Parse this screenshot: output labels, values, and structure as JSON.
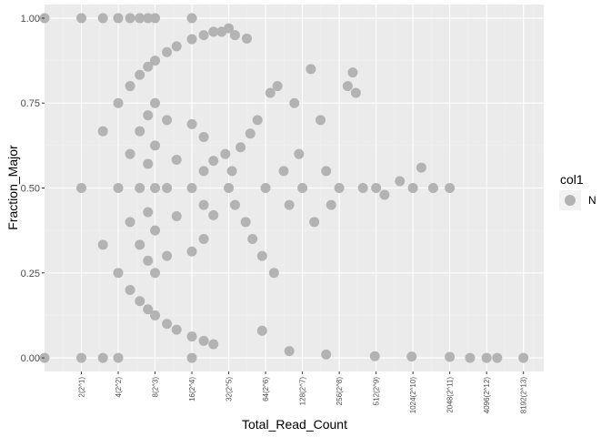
{
  "chart_data": {
    "type": "scatter",
    "xlabel": "Total_Read_Count",
    "ylabel": "Fraction_Major",
    "x_scale": "log2",
    "xlim": [
      1,
      12000
    ],
    "ylim": [
      -0.04,
      1.04
    ],
    "x_ticks": [
      {
        "value": 2,
        "label": "2(2^1)"
      },
      {
        "value": 4,
        "label": "4(2^2)"
      },
      {
        "value": 8,
        "label": "8(2^3)"
      },
      {
        "value": 16,
        "label": "16(2^4)"
      },
      {
        "value": 32,
        "label": "32(2^5)"
      },
      {
        "value": 64,
        "label": "64(2^6)"
      },
      {
        "value": 128,
        "label": "128(2^7)"
      },
      {
        "value": 256,
        "label": "256(2^8)"
      },
      {
        "value": 512,
        "label": "512(2^9)"
      },
      {
        "value": 1024,
        "label": "1024(2^10)"
      },
      {
        "value": 2048,
        "label": "2048(2^11)"
      },
      {
        "value": 4096,
        "label": "4096(2^12)"
      },
      {
        "value": 8192,
        "label": "8192(2^13)"
      }
    ],
    "y_ticks": [
      {
        "value": 0.0,
        "label": "0.00"
      },
      {
        "value": 0.25,
        "label": "0.25"
      },
      {
        "value": 0.5,
        "label": "0.50"
      },
      {
        "value": 0.75,
        "label": "0.75"
      },
      {
        "value": 1.0,
        "label": "1.00"
      }
    ],
    "grid": true,
    "legend": {
      "title": "col1",
      "position": "right",
      "entries": [
        {
          "label": "N",
          "color": "#b3b3b3"
        }
      ]
    },
    "series": [
      {
        "name": "N",
        "color": "#b3b3b3",
        "points": [
          [
            1,
            0
          ],
          [
            1,
            1
          ],
          [
            2,
            0
          ],
          [
            2,
            1
          ],
          [
            2,
            0.5
          ],
          [
            3,
            0.667
          ],
          [
            3,
            0.333
          ],
          [
            3,
            0
          ],
          [
            3,
            1
          ],
          [
            4,
            0
          ],
          [
            4,
            0.25
          ],
          [
            4,
            0.5
          ],
          [
            4,
            0.75
          ],
          [
            4,
            1
          ],
          [
            5,
            0.2
          ],
          [
            5,
            0.4
          ],
          [
            5,
            0.6
          ],
          [
            5,
            0.8
          ],
          [
            5,
            1
          ],
          [
            6,
            0.167
          ],
          [
            6,
            0.333
          ],
          [
            6,
            0.5
          ],
          [
            6,
            0.667
          ],
          [
            6,
            0.833
          ],
          [
            6,
            1
          ],
          [
            7,
            0.143
          ],
          [
            7,
            0.286
          ],
          [
            7,
            0.429
          ],
          [
            7,
            0.571
          ],
          [
            7,
            0.714
          ],
          [
            7,
            0.857
          ],
          [
            7,
            1
          ],
          [
            8,
            0.125
          ],
          [
            8,
            0.25
          ],
          [
            8,
            0.375
          ],
          [
            8,
            0.5
          ],
          [
            8,
            0.625
          ],
          [
            8,
            0.75
          ],
          [
            8,
            0.875
          ],
          [
            8,
            1
          ],
          [
            10,
            0.1
          ],
          [
            10,
            0.3
          ],
          [
            10,
            0.5
          ],
          [
            10,
            0.7
          ],
          [
            10,
            0.9
          ],
          [
            12,
            0.083
          ],
          [
            12,
            0.417
          ],
          [
            12,
            0.583
          ],
          [
            12,
            0.917
          ],
          [
            16,
            0.063
          ],
          [
            16,
            0.313
          ],
          [
            16,
            0.5
          ],
          [
            16,
            0.688
          ],
          [
            16,
            0.938
          ],
          [
            16,
            0
          ],
          [
            16,
            1
          ],
          [
            20,
            0.05
          ],
          [
            20,
            0.35
          ],
          [
            20,
            0.45
          ],
          [
            20,
            0.55
          ],
          [
            20,
            0.65
          ],
          [
            20,
            0.95
          ],
          [
            24,
            0.04
          ],
          [
            24,
            0.42
          ],
          [
            24,
            0.58
          ],
          [
            24,
            0.96
          ],
          [
            28,
            0.96
          ],
          [
            32,
            0.97
          ],
          [
            36,
            0.95
          ],
          [
            45,
            0.94
          ],
          [
            30,
            0.6
          ],
          [
            32,
            0.5
          ],
          [
            34,
            0.55
          ],
          [
            36,
            0.45
          ],
          [
            40,
            0.62
          ],
          [
            44,
            0.4
          ],
          [
            48,
            0.66
          ],
          [
            50,
            0.35
          ],
          [
            55,
            0.7
          ],
          [
            60,
            0.3
          ],
          [
            64,
            0.5
          ],
          [
            70,
            0.78
          ],
          [
            75,
            0.25
          ],
          [
            80,
            0.8
          ],
          [
            90,
            0.55
          ],
          [
            100,
            0.45
          ],
          [
            110,
            0.75
          ],
          [
            120,
            0.6
          ],
          [
            128,
            0.5
          ],
          [
            150,
            0.85
          ],
          [
            160,
            0.4
          ],
          [
            180,
            0.7
          ],
          [
            200,
            0.55
          ],
          [
            220,
            0.45
          ],
          [
            256,
            0.5
          ],
          [
            300,
            0.8
          ],
          [
            330,
            0.84
          ],
          [
            350,
            0.78
          ],
          [
            400,
            0.5
          ],
          [
            512,
            0.5
          ],
          [
            600,
            0.48
          ],
          [
            800,
            0.52
          ],
          [
            1024,
            0.5
          ],
          [
            1200,
            0.56
          ],
          [
            1500,
            0.5
          ],
          [
            2048,
            0.5
          ],
          [
            60,
            0.08
          ],
          [
            100,
            0.02
          ],
          [
            200,
            0.01
          ],
          [
            500,
            0.005
          ],
          [
            1000,
            0.004
          ],
          [
            2048,
            0.003
          ],
          [
            3000,
            0
          ],
          [
            4096,
            0
          ],
          [
            5000,
            0
          ],
          [
            8192,
            0
          ]
        ]
      }
    ]
  }
}
